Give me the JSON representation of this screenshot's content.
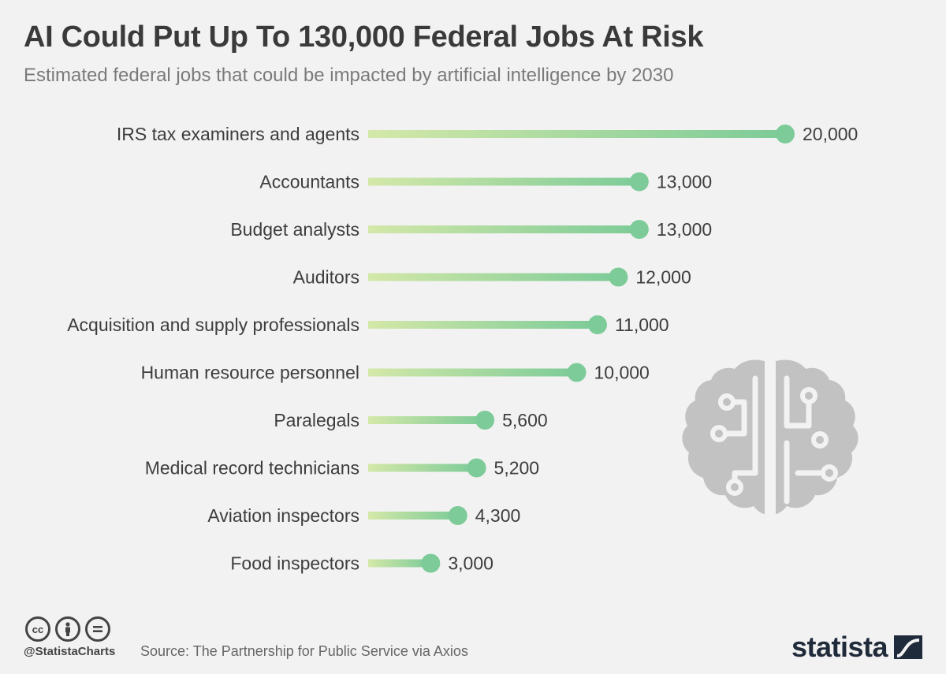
{
  "header": {
    "title": "AI Could Put Up To 130,000 Federal Jobs At Risk",
    "subtitle": "Estimated federal jobs that could be impacted by artificial intelligence by 2030"
  },
  "chart_data": {
    "type": "bar",
    "orientation": "horizontal",
    "style": "lollipop",
    "categories": [
      "IRS tax examiners and agents",
      "Accountants",
      "Budget analysts",
      "Auditors",
      "Acquisition and supply professionals",
      "Human resource personnel",
      "Paralegals",
      "Medical record technicians",
      "Aviation inspectors",
      "Food inspectors"
    ],
    "values": [
      20000,
      13000,
      13000,
      12000,
      11000,
      10000,
      5600,
      5200,
      4300,
      3000
    ],
    "value_labels": [
      "20,000",
      "13,000",
      "13,000",
      "12,000",
      "11,000",
      "10,000",
      "5,600",
      "5,200",
      "4,300",
      "3,000"
    ],
    "xlim": [
      0,
      20000
    ],
    "grid": false,
    "colors": {
      "bar_start": "#d4e8a8",
      "bar_end": "#7ccb98",
      "dot": "#7ccb98"
    }
  },
  "decoration": {
    "icon": "brain-circuit-icon",
    "color": "#c2c2c2"
  },
  "footer": {
    "license_icons": [
      "cc-icon",
      "by-icon",
      "nd-icon"
    ],
    "handle": "@StatistaCharts",
    "source": "Source: The Partnership for Public Service via Axios",
    "brand": "statista",
    "brand_icon": "statista-logo-icon"
  }
}
